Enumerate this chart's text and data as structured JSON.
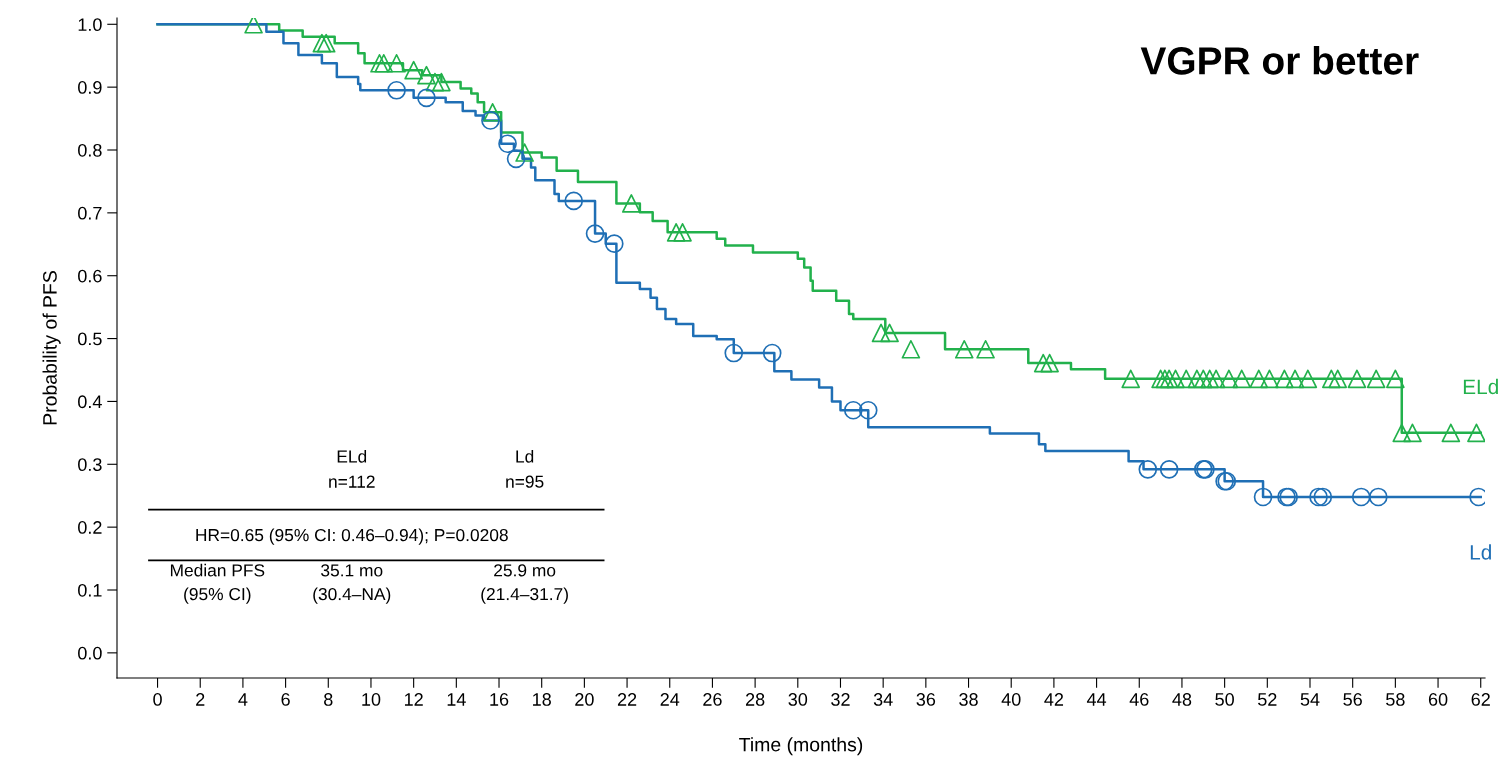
{
  "chart_data": {
    "type": "step",
    "title": "VGPR or better",
    "xlabel": "Time (months)",
    "ylabel": "Probability of PFS",
    "xlim": [
      -1.9,
      62.2
    ],
    "ylim": [
      -0.04,
      1.01
    ],
    "xticks": [
      0,
      2,
      4,
      6,
      8,
      10,
      12,
      14,
      16,
      18,
      20,
      22,
      24,
      26,
      28,
      30,
      32,
      34,
      36,
      38,
      40,
      42,
      44,
      46,
      48,
      50,
      52,
      54,
      56,
      58,
      60,
      62
    ],
    "yticks": [
      {
        "value": 0,
        "label": "0.0"
      },
      {
        "value": 0.1,
        "label": "0.1"
      },
      {
        "value": 0.2,
        "label": "0.2"
      },
      {
        "value": 0.3,
        "label": "0.3"
      },
      {
        "value": 0.4,
        "label": "0.4"
      },
      {
        "value": 0.5,
        "label": "0.5"
      },
      {
        "value": 0.6,
        "label": "0.6"
      },
      {
        "value": 0.7,
        "label": "0.7"
      },
      {
        "value": 0.8,
        "label": "0.8"
      },
      {
        "value": 0.9,
        "label": "0.9"
      },
      {
        "value": 1,
        "label": "1.0"
      }
    ],
    "grid": false,
    "legend": false,
    "annotations": [
      "ELd",
      "n=112",
      "Ld",
      "n=95",
      "HR=0.65 (95% CI: 0.46–0.94); P=0.0208",
      "Median PFS\n(95% CI)",
      "35.1 mo\n(30.4–NA)",
      "25.9 mo\n(21.4–31.7)"
    ],
    "series": [
      {
        "name": "ELd",
        "color": "#22b14c",
        "marker": "none",
        "x": [
          0,
          5.7,
          6.8,
          8.3,
          9.4,
          9.7,
          11.5,
          12.4,
          13.3,
          14.2,
          14.7,
          15.0,
          15.3,
          16.1,
          17.1,
          18.0,
          18.7,
          19.7,
          21.5,
          22.6,
          23.2,
          23.9,
          26.2,
          26.6,
          27.9,
          30.0,
          30.3,
          30.6,
          30.7,
          31.8,
          32.4,
          32.6,
          34.1,
          36.9,
          40.8,
          42.8,
          44.4,
          58.3,
          62
        ],
        "values": [
          1.0,
          0.99,
          0.98,
          0.97,
          0.954,
          0.938,
          0.927,
          0.919,
          0.908,
          0.898,
          0.89,
          0.876,
          0.86,
          0.828,
          0.796,
          0.788,
          0.767,
          0.749,
          0.715,
          0.701,
          0.687,
          0.669,
          0.659,
          0.648,
          0.637,
          0.627,
          0.613,
          0.592,
          0.576,
          0.56,
          0.539,
          0.531,
          0.509,
          0.483,
          0.461,
          0.451,
          0.436,
          0.35,
          0.35
        ]
      },
      {
        "type": "scatter",
        "color": "#22b14c",
        "marker": "triangle",
        "x": [
          4.5,
          7.7,
          7.9,
          10.4,
          10.6,
          11.2,
          12.0,
          12.6,
          13.0,
          13.3,
          15.7,
          17.2,
          22.2,
          24.3,
          24.6,
          33.9,
          34.3,
          35.3,
          37.8,
          38.8,
          41.5,
          41.8,
          45.6,
          47.0,
          47.2,
          47.4,
          47.7,
          48.2,
          48.7,
          49.0,
          49.3,
          49.6,
          50.2,
          50.8,
          51.6,
          52.1,
          52.8,
          53.3,
          53.9,
          55.0,
          55.3,
          56.2,
          57.1,
          58.0,
          58.3,
          58.8,
          60.6,
          61.8
        ],
        "values": [
          1.0,
          0.97,
          0.97,
          0.938,
          0.938,
          0.938,
          0.927,
          0.919,
          0.908,
          0.908,
          0.86,
          0.796,
          0.715,
          0.669,
          0.669,
          0.509,
          0.509,
          0.483,
          0.483,
          0.483,
          0.461,
          0.461,
          0.436,
          0.436,
          0.436,
          0.436,
          0.436,
          0.436,
          0.436,
          0.436,
          0.436,
          0.436,
          0.436,
          0.436,
          0.436,
          0.436,
          0.436,
          0.436,
          0.436,
          0.436,
          0.436,
          0.436,
          0.436,
          0.436,
          0.35,
          0.35,
          0.35,
          0.35
        ]
      },
      {
        "name": "Ld",
        "color": "#1f6fb5",
        "marker": "none",
        "x": [
          0,
          5.1,
          5.9,
          6.6,
          7.7,
          8.4,
          9.4,
          9.5,
          12.0,
          13.5,
          14.3,
          14.9,
          15.3,
          16.1,
          16.7,
          17.1,
          17.5,
          17.7,
          18.6,
          18.8,
          20.5,
          21.0,
          21.5,
          22.6,
          23.1,
          23.4,
          23.8,
          24.3,
          25.1,
          26.2,
          27.0,
          28.9,
          29.7,
          31.0,
          31.6,
          32.0,
          33.3,
          39.0,
          41.3,
          41.6,
          45.5,
          46.2,
          50.0,
          51.8,
          62
        ],
        "values": [
          1.0,
          0.988,
          0.97,
          0.951,
          0.938,
          0.916,
          0.905,
          0.895,
          0.883,
          0.876,
          0.862,
          0.855,
          0.847,
          0.81,
          0.799,
          0.786,
          0.772,
          0.752,
          0.73,
          0.719,
          0.667,
          0.651,
          0.589,
          0.579,
          0.565,
          0.547,
          0.531,
          0.523,
          0.504,
          0.499,
          0.477,
          0.448,
          0.435,
          0.422,
          0.4,
          0.386,
          0.359,
          0.349,
          0.332,
          0.321,
          0.305,
          0.292,
          0.273,
          0.248,
          0.248
        ]
      },
      {
        "type": "scatter",
        "color": "#1f6fb5",
        "marker": "circle",
        "x": [
          11.2,
          12.6,
          15.6,
          16.4,
          16.8,
          19.5,
          20.5,
          21.4,
          27.0,
          28.8,
          32.6,
          33.3,
          46.4,
          47.4,
          49.0,
          49.1,
          50.0,
          50.1,
          51.8,
          52.9,
          53.0,
          54.4,
          54.6,
          56.4,
          57.2,
          61.9
        ],
        "values": [
          0.895,
          0.883,
          0.847,
          0.81,
          0.786,
          0.719,
          0.667,
          0.651,
          0.477,
          0.477,
          0.386,
          0.386,
          0.292,
          0.292,
          0.292,
          0.292,
          0.273,
          0.273,
          0.248,
          0.248,
          0.248,
          0.248,
          0.248,
          0.248,
          0.248,
          0.248
        ]
      }
    ]
  }
}
